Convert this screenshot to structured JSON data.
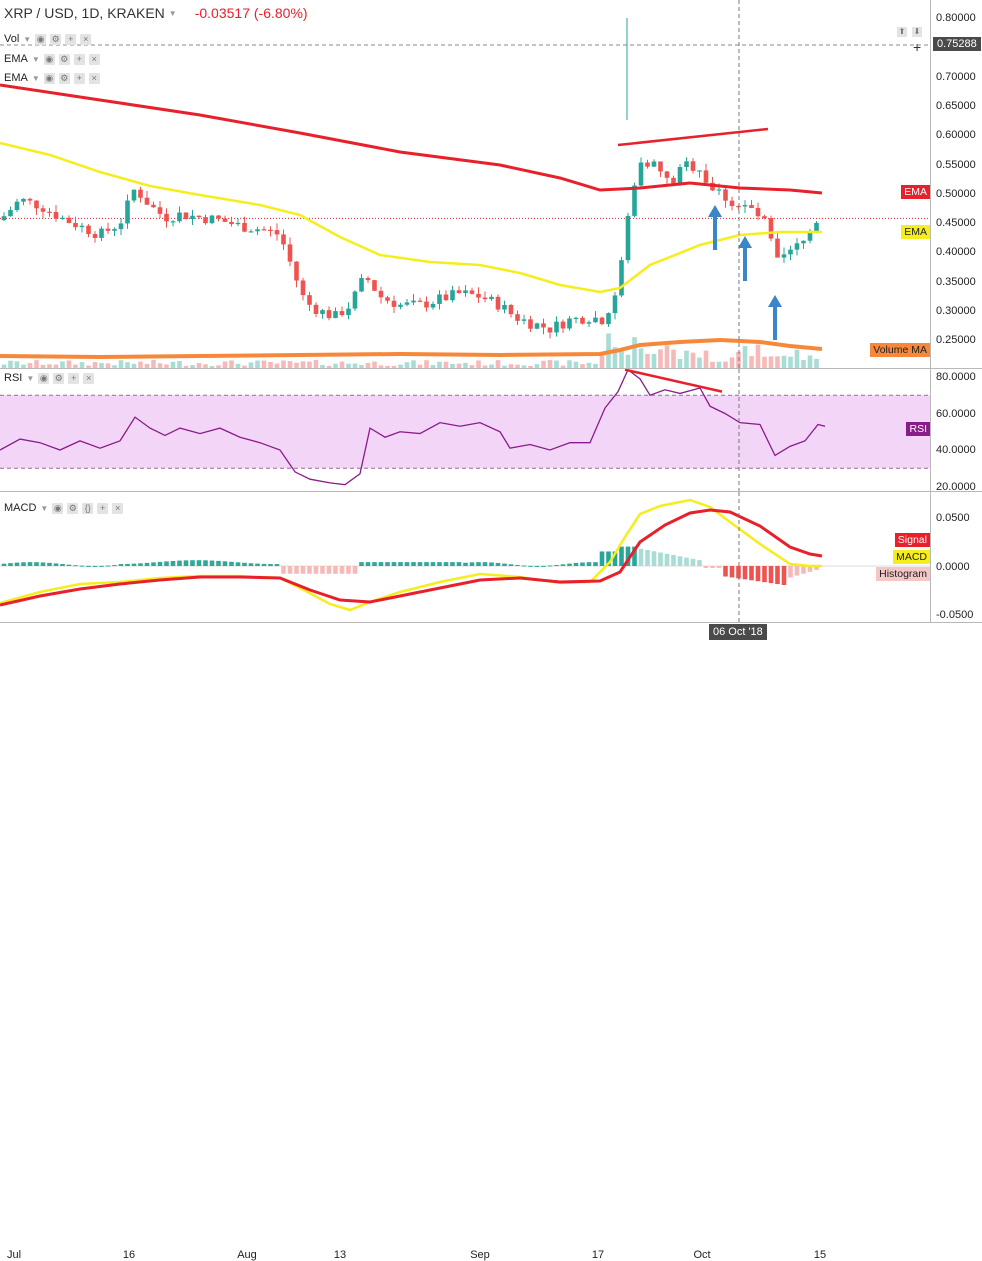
{
  "header": {
    "symbol": "XRP / USD, 1D, KRAKEN",
    "change": "-0.03517 (-6.80%)"
  },
  "studies": {
    "vol": "Vol",
    "ema1": "EMA",
    "ema2": "EMA",
    "rsi": "RSI",
    "macd": "MACD"
  },
  "price_axis": [
    "0.80000",
    "0.75000",
    "0.70000",
    "0.65000",
    "0.60000",
    "0.55000",
    "0.50000",
    "0.45000",
    "0.40000",
    "0.35000",
    "0.30000",
    "0.25000"
  ],
  "crosshair_price": "0.75288",
  "rsi_axis": [
    "80.0000",
    "60.0000",
    "40.0000",
    "20.0000"
  ],
  "macd_axis": [
    "0.0500",
    "0.0000",
    "-0.0500"
  ],
  "x_axis": [
    "Jul",
    "16",
    "Aug",
    "13",
    "Sep",
    "17",
    "Oct",
    "15"
  ],
  "crosshair_date": "06 Oct '18",
  "tags": {
    "ema_red": "EMA",
    "ema_yellow": "EMA",
    "volume_ma": "Volume MA",
    "rsi": "RSI",
    "signal": "Signal",
    "macd": "MACD",
    "histogram": "Histogram"
  },
  "colors": {
    "up": "#26a69a",
    "down": "#ef5350",
    "ema_long": "#e8202b",
    "ema_short": "#f5ee1c",
    "volume_ma": "#f7883a",
    "rsi_line": "#8a1b8a",
    "rsi_band": "#f3d6f7",
    "arrow": "#3a86c8"
  },
  "icons": [
    "eye-icon",
    "gear-icon",
    "plus-icon",
    "close-icon"
  ],
  "chart_data": [
    {
      "type": "candlestick",
      "title": "XRP / USD, 1D, KRAKEN",
      "x": [
        "Jul",
        "16",
        "Aug",
        "13",
        "Sep",
        "17",
        "Oct",
        "15"
      ],
      "ylim": [
        0.22,
        0.82
      ],
      "series": [
        {
          "name": "EMA",
          "color": "#e8202b"
        },
        {
          "name": "EMA",
          "color": "#f5ee1c"
        },
        {
          "name": "Volume MA",
          "color": "#f7883a"
        }
      ],
      "close_approx": [
        0.46,
        0.49,
        0.47,
        0.44,
        0.47,
        0.49,
        0.46,
        0.45,
        0.42,
        0.33,
        0.29,
        0.32,
        0.36,
        0.33,
        0.34,
        0.35,
        0.33,
        0.29,
        0.27,
        0.29,
        0.33,
        0.56,
        0.58,
        0.54,
        0.55,
        0.53,
        0.49,
        0.47,
        0.38,
        0.42,
        0.46,
        0.46
      ]
    },
    {
      "type": "line",
      "title": "RSI",
      "ylim": [
        15,
        85
      ],
      "band": [
        30,
        70
      ]
    },
    {
      "type": "line",
      "title": "MACD",
      "ylim": [
        -0.065,
        0.07
      ],
      "series": [
        {
          "name": "Signal"
        },
        {
          "name": "MACD"
        },
        {
          "name": "Histogram"
        }
      ]
    }
  ]
}
